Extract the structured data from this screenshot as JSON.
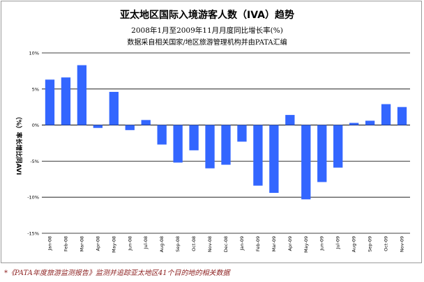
{
  "chart_data": {
    "type": "bar",
    "title": "亚太地区国际入境游客人数（IVA）趋势",
    "subtitle": "2008年1月至2009年11月月度同比增长率(%)",
    "note": "数据采自相关国家/地区旅游管理机构并由PATA汇编",
    "ylabel": "（%）率长增比同AVI",
    "xlabel": "",
    "categories": [
      "Jan-08",
      "Feb-08",
      "Mar-08",
      "Apr-08",
      "May-08",
      "Jun-08",
      "Jul-08",
      "Aug-08",
      "Sep-08",
      "Oct-08",
      "Nov-08",
      "Dec-08",
      "Jan-09",
      "Feb-09",
      "Mar-09",
      "Apr-09",
      "May-09",
      "Jun-09",
      "Jul-09",
      "Aug-09",
      "Sep-09",
      "Oct-09",
      "Nov-09"
    ],
    "values": [
      6.3,
      6.6,
      8.3,
      -0.4,
      4.6,
      -0.7,
      0.7,
      -2.7,
      -5.2,
      -3.5,
      -6.0,
      -5.5,
      -2.3,
      -8.4,
      -9.4,
      1.4,
      -10.3,
      -7.9,
      -5.9,
      0.3,
      0.6,
      2.9,
      2.5
    ],
    "ylim": [
      -15,
      10
    ],
    "yticks": [
      "-15%",
      "-10%",
      "-5%",
      "0%",
      "5%",
      "10%"
    ],
    "bar_color": "#3366ff",
    "grid": true,
    "legend": "none"
  },
  "footnote": "*《PATA年度旅游监测报告》监测并追踪亚太地区41个目的地的相关数据"
}
